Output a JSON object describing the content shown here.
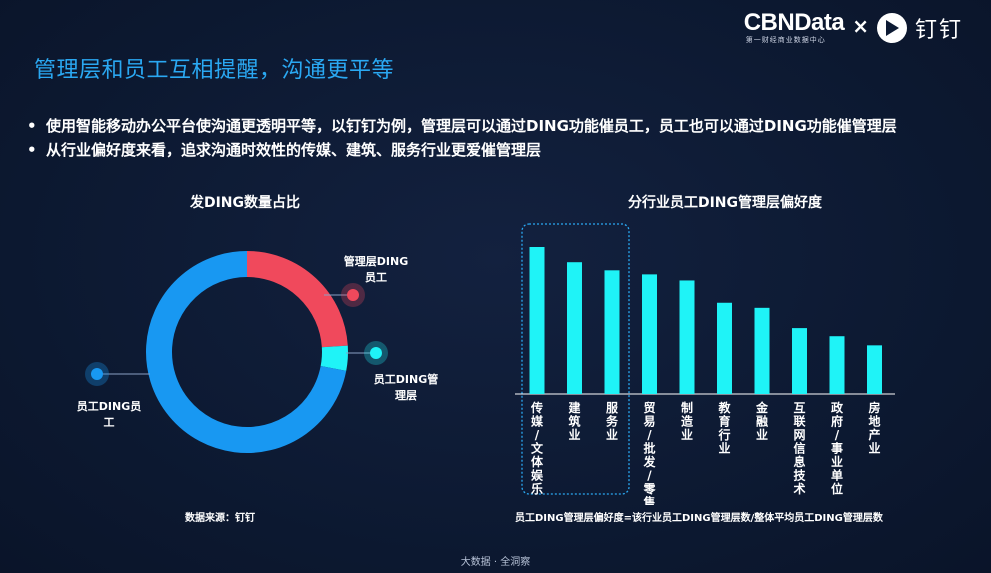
{
  "brand": {
    "name": "CBNData",
    "tagline": "第一财经商业数据中心",
    "times": "×",
    "partner": "钉钉"
  },
  "page_title": "管理层和员工互相提醒，沟通更平等",
  "bullets": [
    "使用智能移动办公平台使沟通更透明平等，以钉钉为例，管理层可以通过DING功能催员工，员工也可以通过DING功能催管理层",
    "从行业偏好度来看，追求沟通时效性的传媒、建筑、服务行业更爱催管理层"
  ],
  "donut": {
    "title": "发DING数量占比",
    "label_mgmt": [
      "管理层DING",
      "员工"
    ],
    "label_emp_mgmt": [
      "员工DING管",
      "理层"
    ],
    "label_emp": [
      "员工DING员",
      "工"
    ]
  },
  "bars": {
    "title": "分行业员工DING管理层偏好度",
    "note": "员工DING管理层偏好度=该行业员工DING管理层数/整体平均员工DING管理层数"
  },
  "chart_data": [
    {
      "type": "pie",
      "title": "发DING数量占比",
      "categories": [
        "管理层DING员工",
        "员工DING管理层",
        "员工DING员工"
      ],
      "values": [
        24,
        4,
        72
      ],
      "colors": [
        "#f0495c",
        "#1ff3f7",
        "#1898f2"
      ]
    },
    {
      "type": "bar",
      "title": "分行业员工DING管理层偏好度",
      "categories": [
        "传媒/文体娱乐",
        "建筑业",
        "服务业",
        "贸易/批发/零售",
        "制造业",
        "教育行业",
        "金融业",
        "互联网信息技术",
        "政府/事业单位",
        "房地产业"
      ],
      "values": [
        1.45,
        1.3,
        1.22,
        1.18,
        1.12,
        0.9,
        0.85,
        0.65,
        0.57,
        0.48
      ],
      "highlighted": [
        "传媒/文体娱乐",
        "建筑业",
        "服务业"
      ],
      "color": "#1ff3f7"
    }
  ],
  "source": "数据来源：钉钉",
  "footer": "大数据 · 全洞察"
}
